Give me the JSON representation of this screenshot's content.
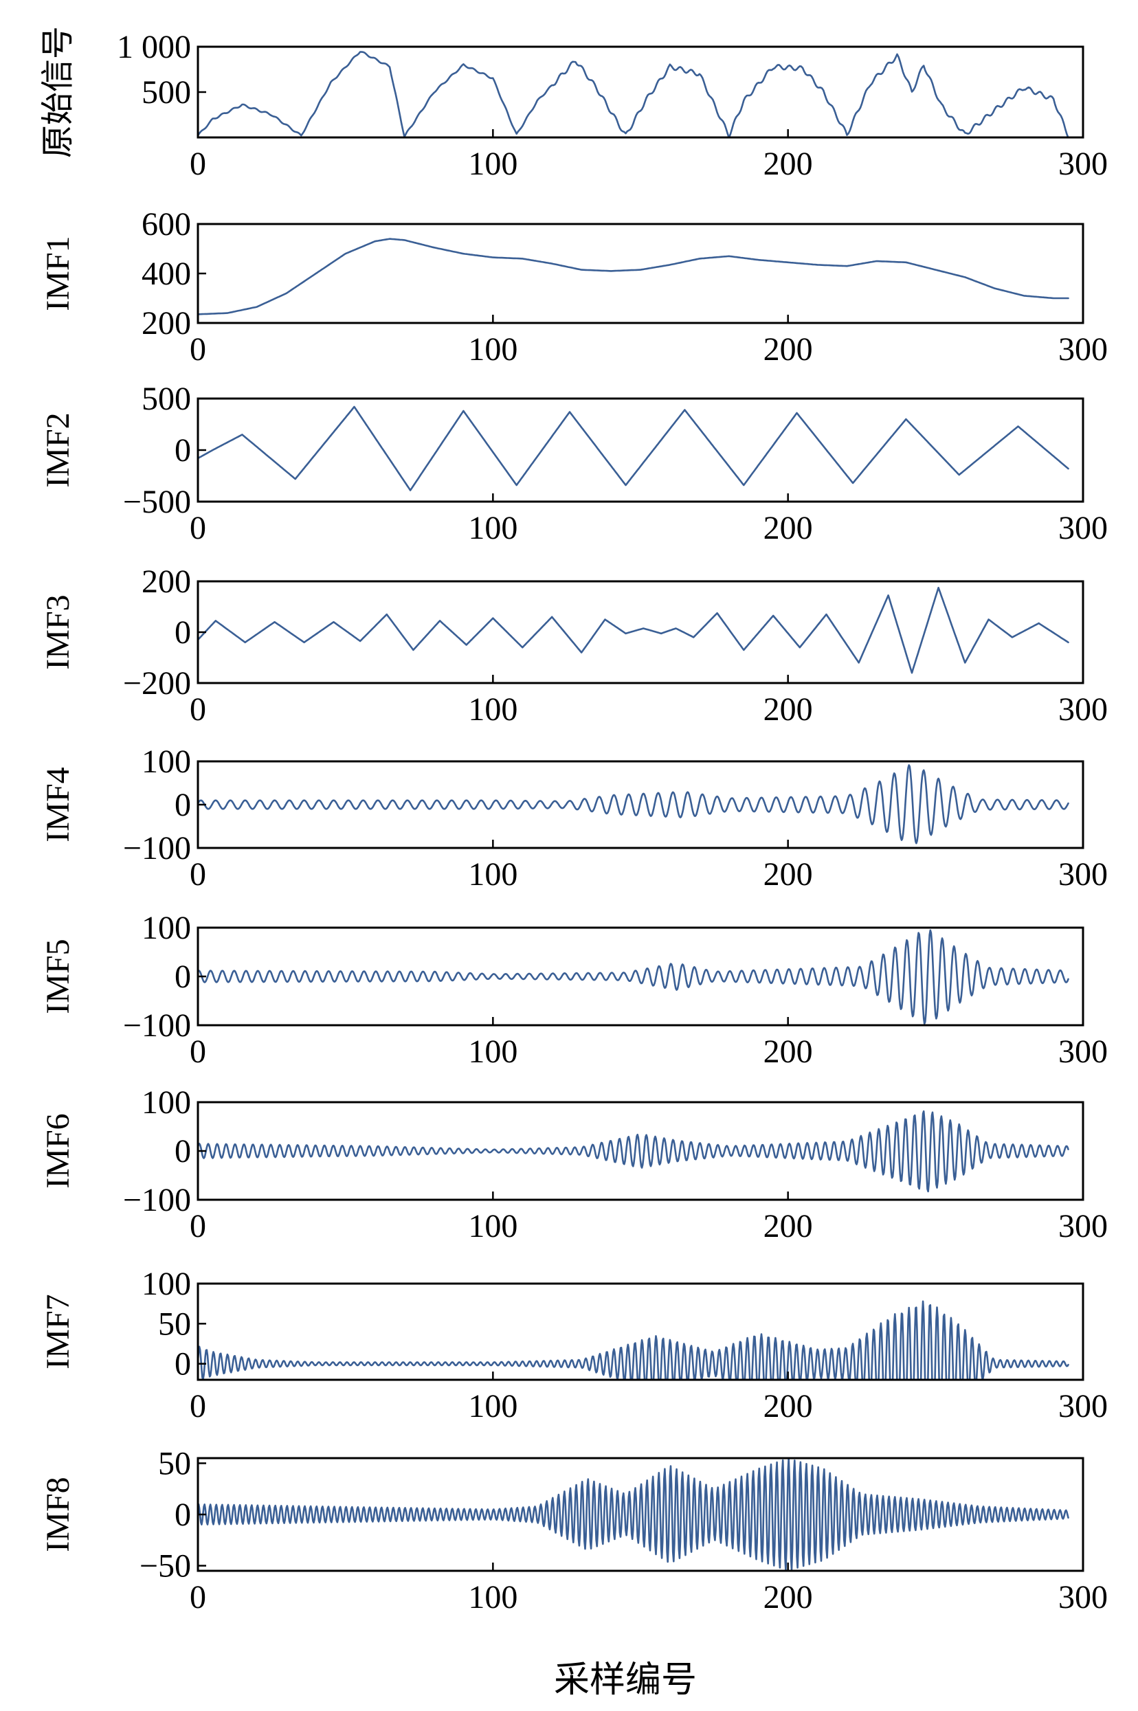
{
  "chart_data": [
    {
      "type": "line",
      "ylabel": "原始信号",
      "xlim": [
        0,
        300
      ],
      "ylim": [
        0,
        1000
      ],
      "xticks": [
        "0",
        "100",
        "200",
        "300"
      ],
      "yticks": [
        500,
        1000
      ],
      "ytick_labels": [
        "500",
        "1 000"
      ],
      "x": [
        0,
        5,
        15,
        25,
        35,
        45,
        55,
        65,
        70,
        80,
        90,
        100,
        108,
        115,
        128,
        135,
        145,
        152,
        160,
        170,
        180,
        185,
        195,
        205,
        212,
        220,
        228,
        237,
        242,
        246,
        252,
        260,
        270,
        280,
        290,
        295
      ],
      "values": [
        20,
        200,
        360,
        250,
        20,
        600,
        950,
        780,
        10,
        500,
        800,
        650,
        30,
        400,
        850,
        550,
        20,
        420,
        780,
        700,
        20,
        400,
        780,
        760,
        500,
        30,
        600,
        900,
        500,
        800,
        350,
        30,
        300,
        550,
        420,
        20
      ]
    },
    {
      "type": "line",
      "ylabel": "IMF1",
      "xlim": [
        0,
        300
      ],
      "ylim": [
        200,
        600
      ],
      "xticks": [
        "0",
        "100",
        "200",
        "300"
      ],
      "yticks": [
        200,
        400,
        600
      ],
      "ytick_labels": [
        "200",
        "400",
        "600"
      ],
      "x": [
        0,
        10,
        20,
        30,
        40,
        50,
        60,
        65,
        70,
        80,
        90,
        100,
        110,
        120,
        130,
        140,
        150,
        160,
        170,
        180,
        190,
        200,
        210,
        220,
        230,
        240,
        250,
        260,
        270,
        280,
        290,
        295
      ],
      "values": [
        235,
        240,
        265,
        320,
        400,
        480,
        530,
        540,
        535,
        505,
        480,
        465,
        460,
        440,
        415,
        410,
        415,
        435,
        460,
        470,
        455,
        445,
        435,
        430,
        450,
        445,
        415,
        385,
        340,
        310,
        300,
        300
      ]
    },
    {
      "type": "line",
      "ylabel": "IMF2",
      "xlim": [
        0,
        300
      ],
      "ylim": [
        -500,
        500
      ],
      "xticks": [
        "0",
        "100",
        "200",
        "300"
      ],
      "yticks": [
        -500,
        0,
        500
      ],
      "ytick_labels": [
        "−500",
        "0",
        "500"
      ],
      "x": [
        0,
        5,
        15,
        33,
        53,
        72,
        90,
        108,
        126,
        145,
        165,
        185,
        203,
        222,
        240,
        258,
        278,
        295
      ],
      "values": [
        -80,
        0,
        150,
        -280,
        420,
        -390,
        380,
        -340,
        370,
        -340,
        390,
        -340,
        360,
        -320,
        300,
        -240,
        230,
        -180
      ]
    },
    {
      "type": "line",
      "ylabel": "IMF3",
      "xlim": [
        0,
        300
      ],
      "ylim": [
        -200,
        200
      ],
      "xticks": [
        "0",
        "100",
        "200",
        "300"
      ],
      "yticks": [
        -200,
        0,
        200
      ],
      "ytick_labels": [
        "−200",
        "0",
        "200"
      ],
      "x": [
        0,
        6,
        16,
        26,
        36,
        46,
        55,
        64,
        73,
        82,
        91,
        100,
        110,
        120,
        130,
        138,
        145,
        151,
        157,
        162,
        168,
        176,
        185,
        195,
        204,
        213,
        224,
        234,
        242,
        251,
        260,
        268,
        276,
        285,
        295
      ],
      "values": [
        -30,
        45,
        -40,
        40,
        -40,
        40,
        -35,
        70,
        -70,
        45,
        -50,
        55,
        -60,
        60,
        -80,
        50,
        -5,
        15,
        -5,
        15,
        -20,
        75,
        -70,
        65,
        -60,
        70,
        -120,
        145,
        -160,
        175,
        -120,
        50,
        -20,
        35,
        -40
      ]
    },
    {
      "type": "line",
      "ylabel": "IMF4",
      "xlim": [
        0,
        300
      ],
      "ylim": [
        -100,
        100
      ],
      "xticks": [
        "0",
        "100",
        "200",
        "300"
      ],
      "yticks": [
        -100,
        0,
        100
      ],
      "ytick_labels": [
        "−100",
        "0",
        "100"
      ],
      "signal": {
        "freq": 0.2,
        "phase": 0.3,
        "envelope_x": [
          0,
          100,
          125,
          140,
          165,
          180,
          220,
          230,
          242,
          255,
          265,
          295
        ],
        "envelope_y": [
          10,
          10,
          8,
          22,
          30,
          15,
          20,
          50,
          95,
          45,
          12,
          10
        ]
      }
    },
    {
      "type": "line",
      "ylabel": "IMF5",
      "xlim": [
        0,
        300
      ],
      "ylim": [
        -100,
        100
      ],
      "xticks": [
        "0",
        "100",
        "200",
        "300"
      ],
      "yticks": [
        -100,
        0,
        100
      ],
      "ytick_labels": [
        "−100",
        "0",
        "100"
      ],
      "signal": {
        "freq": 0.25,
        "phase": 1.1,
        "envelope_x": [
          0,
          80,
          100,
          145,
          162,
          175,
          225,
          235,
          247,
          258,
          268,
          295
        ],
        "envelope_y": [
          12,
          10,
          5,
          8,
          28,
          10,
          20,
          55,
          100,
          55,
          18,
          12
        ]
      }
    },
    {
      "type": "line",
      "ylabel": "IMF6",
      "xlim": [
        0,
        300
      ],
      "ylim": [
        -100,
        100
      ],
      "xticks": [
        "0",
        "100",
        "200",
        "300"
      ],
      "yticks": [
        -100,
        0,
        100
      ],
      "ytick_labels": [
        "−100",
        "0",
        "100"
      ],
      "signal": {
        "freq": 0.33,
        "phase": 0.6,
        "envelope_x": [
          0,
          60,
          100,
          130,
          150,
          162,
          180,
          220,
          235,
          247,
          258,
          268,
          295
        ],
        "envelope_y": [
          15,
          10,
          3,
          8,
          35,
          22,
          10,
          20,
          55,
          85,
          55,
          15,
          10
        ]
      }
    },
    {
      "type": "line",
      "ylabel": "IMF7",
      "xlim": [
        0,
        300
      ],
      "ylim": [
        -20,
        100
      ],
      "xticks": [
        "0",
        "100",
        "200",
        "300"
      ],
      "yticks": [
        0,
        50,
        100
      ],
      "ytick_labels": [
        "0",
        "50",
        "100"
      ],
      "signal": {
        "freq": 0.42,
        "phase": 0.2,
        "envelope_x": [
          0,
          5,
          20,
          40,
          100,
          130,
          155,
          175,
          190,
          210,
          220,
          235,
          247,
          258,
          270,
          295
        ],
        "envelope_y": [
          22,
          15,
          5,
          2,
          2,
          5,
          35,
          15,
          38,
          18,
          20,
          60,
          80,
          50,
          5,
          3
        ]
      }
    },
    {
      "type": "line",
      "ylabel": "IMF8",
      "xlim": [
        0,
        300
      ],
      "ylim": [
        -55,
        55
      ],
      "xticks": [
        "0",
        "100",
        "200",
        "300"
      ],
      "yticks": [
        -50,
        0,
        50
      ],
      "ytick_labels": [
        "−50",
        "0",
        "50"
      ],
      "signal": {
        "freq": 0.5,
        "phase": 0.9,
        "envelope_x": [
          0,
          40,
          100,
          115,
          132,
          145,
          160,
          175,
          190,
          200,
          212,
          225,
          245,
          265,
          295
        ],
        "envelope_y": [
          10,
          8,
          5,
          8,
          35,
          20,
          48,
          25,
          45,
          55,
          45,
          20,
          15,
          8,
          4
        ]
      }
    }
  ],
  "xlabel": "采样编号",
  "line_color": "#3a5f95"
}
